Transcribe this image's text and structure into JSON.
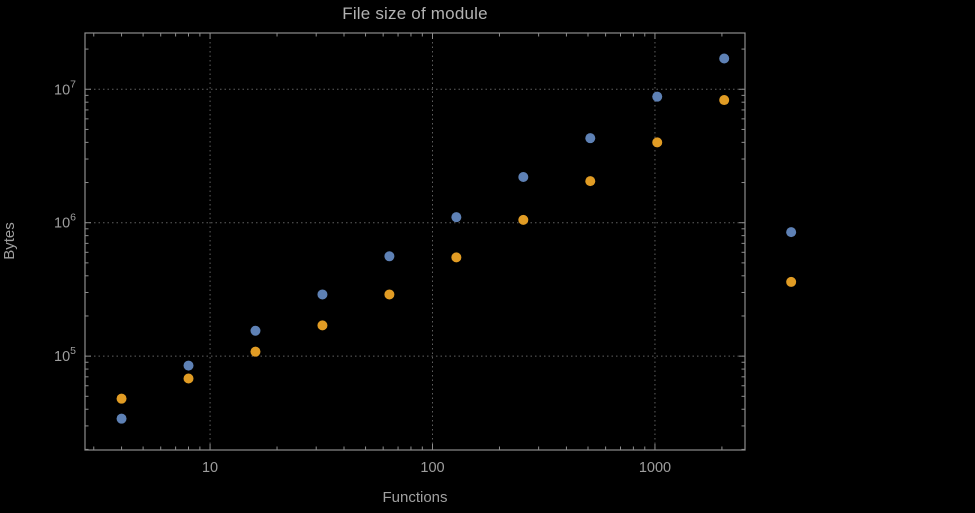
{
  "style": {
    "background": "#000000",
    "title_color": "#b2b2b2",
    "label_color": "#a0a0a0",
    "tick_label_color": "#9e9e9e",
    "frame_color": "#8d8d8d",
    "grid_color": "#5f5f5f",
    "series_blue": "#5E81B5",
    "series_orange": "#E19C24"
  },
  "chart_data": {
    "type": "scatter",
    "title": "File size of module",
    "xlabel": "Functions",
    "ylabel": "Bytes",
    "x_scale": "log",
    "y_scale": "log",
    "grid": "dotted lines at major ticks only",
    "legend": "none",
    "xlim": [
      2.74,
      2540
    ],
    "ylim": [
      19800,
      26400000
    ],
    "x": [
      4,
      8,
      16,
      32,
      64,
      128,
      256,
      512,
      1024,
      2048,
      4096
    ],
    "series": [
      {
        "name": "blue",
        "color": "#5E81B5",
        "values": [
          34000,
          85000,
          155000,
          290000,
          560000,
          1100000,
          2200000,
          4300000,
          8800000,
          17000000,
          850000
        ]
      },
      {
        "name": "orange",
        "color": "#E19C24",
        "values": [
          48000,
          68000,
          108000,
          170000,
          290000,
          550000,
          1050000,
          2050000,
          4000000,
          8300000,
          360000
        ]
      }
    ],
    "x_ticks": [
      {
        "value": 10,
        "label": "10"
      },
      {
        "value": 100,
        "label": "100"
      },
      {
        "value": 1000,
        "label": "1000"
      }
    ],
    "y_ticks": [
      {
        "value": 100000,
        "base": "10",
        "exp": "5"
      },
      {
        "value": 1000000,
        "base": "10",
        "exp": "6"
      },
      {
        "value": 10000000,
        "base": "10",
        "exp": "7"
      }
    ]
  }
}
